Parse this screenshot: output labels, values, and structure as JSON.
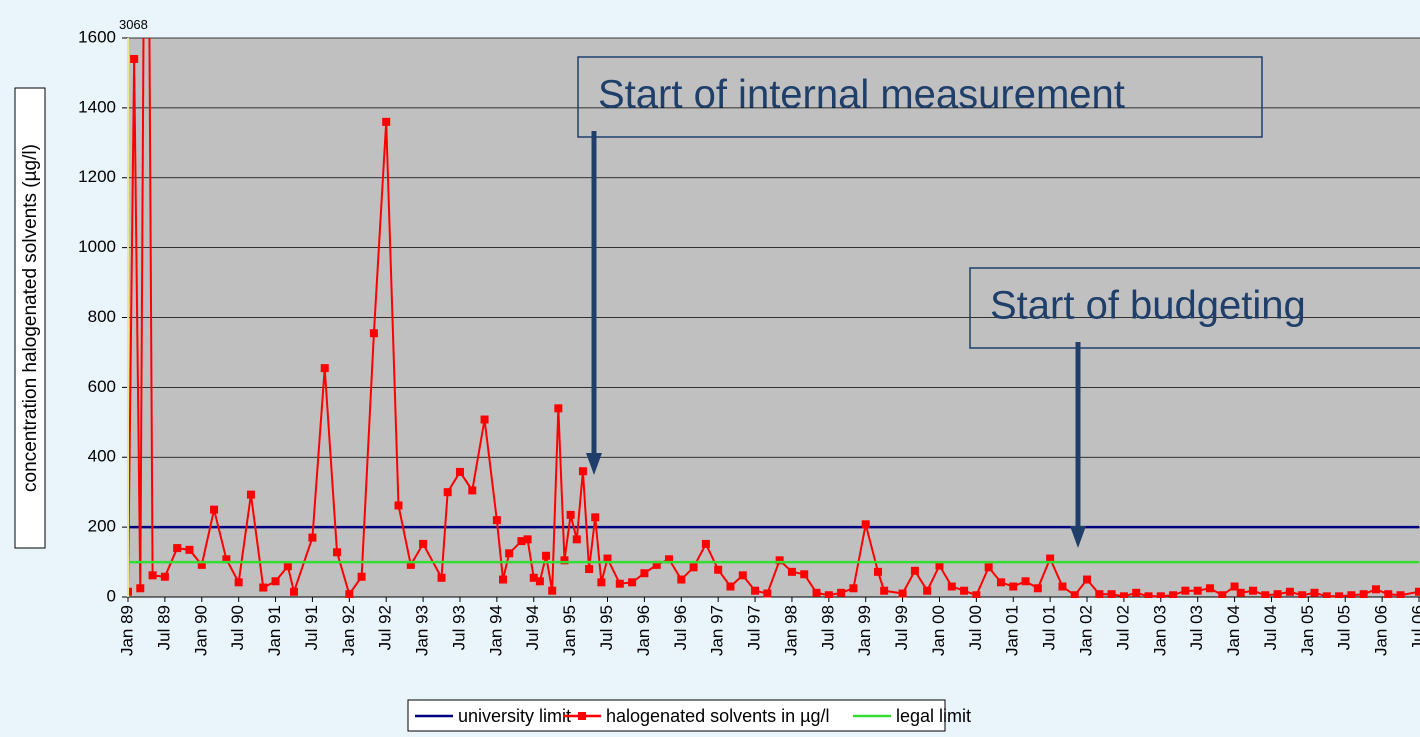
{
  "chart_data": {
    "type": "line",
    "ylabel": "concentration halogenated solvents (µg/l)",
    "ylim": [
      0,
      1600
    ],
    "yticks": [
      0,
      200,
      400,
      600,
      800,
      1000,
      1200,
      1400,
      1600
    ],
    "grid": true,
    "x_labels": [
      "Jan 89",
      "Jul 89",
      "Jan 90",
      "Jul 90",
      "Jan 91",
      "Jul 91",
      "Jan 92",
      "Jul 92",
      "Jan 93",
      "Jul 93",
      "Jan 94",
      "Jul 94",
      "Jan 95",
      "Jul 95",
      "Jan 96",
      "Jul 96",
      "Jan 97",
      "Jul 97",
      "Jan 98",
      "Jul 98",
      "Jan 99",
      "Jul 99",
      "Jan 00",
      "Jul 00",
      "Jan 01",
      "Jul 01",
      "Jan 02",
      "Jul 02",
      "Jan 03",
      "Jul 03",
      "Jan 04",
      "Jul 04",
      "Jan 05",
      "Jul 05",
      "Jan 06",
      "Jul 06"
    ],
    "series": [
      {
        "name": "university limit",
        "color": "#000080",
        "x": [
          "Jan 89",
          "Jul 06"
        ],
        "values": [
          200,
          200
        ]
      },
      {
        "name": "halogenated solvents in µg/l",
        "color": "#ff0000",
        "x": [
          "Jan 89",
          "Feb 89",
          "Mar 89",
          "Apr 89",
          "May 89",
          "Jul 89",
          "Sep 89",
          "Nov 89",
          "Jan 90",
          "Mar 90",
          "May 90",
          "Jul 90",
          "Sep 90",
          "Nov 90",
          "Jan 91",
          "Mar 91",
          "Apr 91",
          "Jul 91",
          "Sep 91",
          "Nov 91",
          "Jan 92",
          "Mar 92",
          "May 92",
          "Jul 92",
          "Sep 92",
          "Nov 92",
          "Jan 93",
          "Apr 93",
          "May 93",
          "Jul 93",
          "Sep 93",
          "Nov 93",
          "Jan 94",
          "Feb 94",
          "Mar 94",
          "May 94",
          "Jun 94",
          "Jul 94",
          "Aug 94",
          "Sep 94",
          "Oct 94",
          "Nov 94",
          "Dec 94",
          "Jan 95",
          "Feb 95",
          "Mar 95",
          "Apr 95",
          "May 95",
          "Jun 95",
          "Jul 95",
          "Sep 95",
          "Nov 95",
          "Jan 96",
          "Mar 96",
          "May 96",
          "Jul 96",
          "Sep 96",
          "Nov 96",
          "Jan 97",
          "Mar 97",
          "May 97",
          "Jul 97",
          "Sep 97",
          "Nov 97",
          "Jan 98",
          "Mar 98",
          "May 98",
          "Jul 98",
          "Sep 98",
          "Nov 98",
          "Jan 99",
          "Mar 99",
          "Apr 99",
          "Jul 99",
          "Sep 99",
          "Nov 99",
          "Jan 00",
          "Mar 00",
          "May 00",
          "Jul 00",
          "Sep 00",
          "Nov 00",
          "Jan 01",
          "Mar 01",
          "May 01",
          "Jul 01",
          "Sep 01",
          "Nov 01",
          "Jan 02",
          "Mar 02",
          "May 02",
          "Jul 02",
          "Sep 02",
          "Nov 02",
          "Jan 03",
          "Mar 03",
          "May 03",
          "Jul 03",
          "Sep 03",
          "Nov 03",
          "Jan 04",
          "Feb 04",
          "Apr 04",
          "Jun 04",
          "Aug 04",
          "Oct 04",
          "Dec 04",
          "Feb 05",
          "Apr 05",
          "Jun 05",
          "Aug 05",
          "Oct 05",
          "Dec 05",
          "Feb 06",
          "Apr 06",
          "Jul 06"
        ],
        "values": [
          15,
          1540,
          25,
          3068,
          62,
          58,
          140,
          135,
          92,
          250,
          108,
          42,
          293,
          27,
          45,
          88,
          15,
          170,
          655,
          128,
          8,
          58,
          755,
          1360,
          262,
          92,
          152,
          55,
          300,
          358,
          305,
          508,
          220,
          50,
          125,
          160,
          165,
          55,
          45,
          118,
          18,
          540,
          105,
          235,
          165,
          360,
          80,
          228,
          42,
          110,
          38,
          42,
          68,
          92,
          108,
          50,
          85,
          152,
          78,
          30,
          62,
          18,
          10,
          105,
          72,
          65,
          12,
          5,
          12,
          25,
          208,
          72,
          18,
          10,
          75,
          18,
          90,
          30,
          18,
          5,
          85,
          42,
          30,
          45,
          25,
          110,
          30,
          5,
          50,
          8,
          8,
          2,
          12,
          2,
          2,
          5,
          18,
          18,
          25,
          5,
          30,
          12,
          18,
          5,
          8,
          15,
          5,
          12,
          2,
          2,
          5,
          8,
          22,
          8,
          5,
          15
        ]
      },
      {
        "name": "legal limit",
        "color": "#33dd33",
        "x": [
          "Jan 89",
          "Jul 06"
        ],
        "values": [
          100,
          100
        ]
      }
    ],
    "annotations": [
      "Start of internal measurement",
      "Start of budgeting"
    ]
  }
}
